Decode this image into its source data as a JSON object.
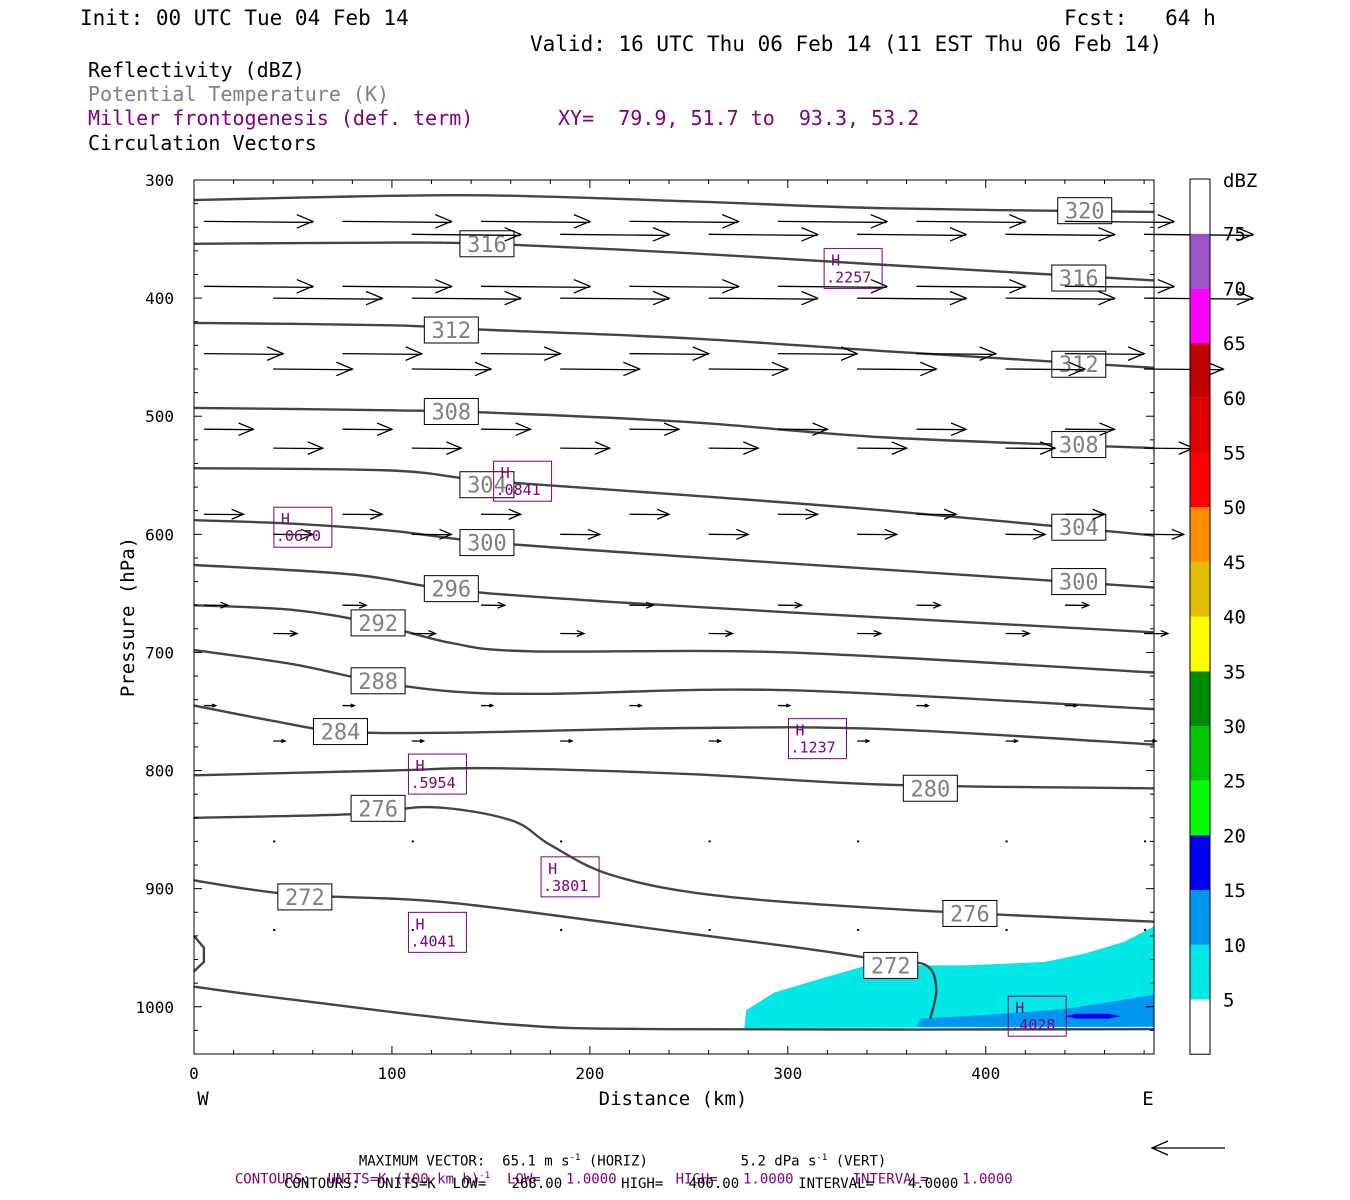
{
  "header": {
    "init": "Init: 00 UTC Tue 04 Feb 14",
    "fcst": "Fcst:   64 h",
    "valid": "Valid: 16 UTC Thu 06 Feb 14 (11 EST Thu 06 Feb 14)"
  },
  "fields": {
    "line1": "Reflectivity (dBZ)",
    "line2": "Potential Temperature (K)",
    "line3": "Miller frontogenesis (def. term)",
    "xy": "XY=  79.9, 51.7 to  93.3, 53.2",
    "line4": "Circulation Vectors"
  },
  "colors": {
    "potential_temperature": "#444444",
    "frontogenesis": "#800080",
    "potential_temperature_label": "#808080",
    "vectors": "#000000"
  },
  "chart_data": {
    "type": "cross-section",
    "xlabel": "Distance (km)",
    "ylabel": "Pressure (hPa)",
    "xlim": [
      0,
      485
    ],
    "ylim": [
      1040,
      300
    ],
    "x_ticks": [
      0,
      100,
      200,
      300,
      400
    ],
    "y_ticks": [
      300,
      400,
      500,
      600,
      700,
      800,
      900,
      1000
    ],
    "x_end_labels": {
      "left": "W",
      "right": "E"
    },
    "colorbar": {
      "unit": "dBZ",
      "levels": [
        5,
        10,
        15,
        20,
        25,
        30,
        35,
        40,
        45,
        50,
        55,
        60,
        65,
        70,
        75
      ],
      "colors": [
        "#00e8e8",
        "#0096f0",
        "#0000f0",
        "#00ff00",
        "#00c800",
        "#008c00",
        "#ffff00",
        "#e6be00",
        "#ff8c00",
        "#ff0000",
        "#e00000",
        "#c00000",
        "#ff00ff",
        "#9955c9",
        "#ffffff"
      ]
    },
    "reflectivity_areas": [
      {
        "level": 5,
        "polygon": [
          [
            278,
            1018
          ],
          [
            279,
            1003
          ],
          [
            293,
            988
          ],
          [
            315,
            977
          ],
          [
            340,
            965
          ],
          [
            390,
            965
          ],
          [
            430,
            962
          ],
          [
            450,
            955
          ],
          [
            470,
            945
          ],
          [
            485,
            932
          ],
          [
            485,
            1017
          ],
          [
            278,
            1018
          ]
        ]
      },
      {
        "level": 10,
        "polygon": [
          [
            365,
            1017
          ],
          [
            367,
            1010
          ],
          [
            400,
            1007
          ],
          [
            440,
            1002
          ],
          [
            485,
            990
          ],
          [
            485,
            1017
          ],
          [
            365,
            1017
          ]
        ]
      },
      {
        "level": 15,
        "polygon": [
          [
            440,
            1008
          ],
          [
            446,
            1006
          ],
          [
            462,
            1006
          ],
          [
            468,
            1008
          ],
          [
            462,
            1010
          ],
          [
            446,
            1010
          ]
        ]
      }
    ],
    "theta_contours": [
      {
        "value": 320,
        "points": [
          [
            0,
            317
          ],
          [
            80,
            314
          ],
          [
            150,
            313
          ],
          [
            250,
            318
          ],
          [
            350,
            324
          ],
          [
            485,
            327
          ]
        ],
        "label_at": [
          450,
          326
        ]
      },
      {
        "value": 316,
        "points": [
          [
            0,
            354
          ],
          [
            100,
            353
          ],
          [
            150,
            354
          ],
          [
            250,
            362
          ],
          [
            350,
            372
          ],
          [
            485,
            385
          ]
        ],
        "label_at": [
          148,
          354
        ],
        "label2_at": [
          447,
          383
        ]
      },
      {
        "value": 312,
        "points": [
          [
            0,
            421
          ],
          [
            100,
            423
          ],
          [
            150,
            427
          ],
          [
            250,
            434
          ],
          [
            350,
            445
          ],
          [
            485,
            459
          ]
        ],
        "label_at": [
          130,
          427
        ],
        "label2_at": [
          447,
          456
        ]
      },
      {
        "value": 308,
        "points": [
          [
            0,
            493
          ],
          [
            100,
            495
          ],
          [
            150,
            497
          ],
          [
            250,
            505
          ],
          [
            350,
            518
          ],
          [
            485,
            527
          ]
        ],
        "label_at": [
          130,
          496
        ],
        "label2_at": [
          447,
          524
        ]
      },
      {
        "value": 304,
        "points": [
          [
            0,
            544
          ],
          [
            100,
            546
          ],
          [
            150,
            555
          ],
          [
            250,
            567
          ],
          [
            350,
            580
          ],
          [
            485,
            601
          ]
        ],
        "label_at": [
          148,
          558
        ],
        "label2_at": [
          447,
          594
        ]
      },
      {
        "value": 300,
        "points": [
          [
            0,
            588
          ],
          [
            50,
            591
          ],
          [
            100,
            597
          ],
          [
            150,
            607
          ],
          [
            250,
            619
          ],
          [
            350,
            630
          ],
          [
            485,
            645
          ]
        ],
        "label_at": [
          148,
          607
        ],
        "label2_at": [
          447,
          640
        ]
      },
      {
        "value": 296,
        "points": [
          [
            0,
            626
          ],
          [
            80,
            634
          ],
          [
            130,
            647
          ],
          [
            200,
            656
          ],
          [
            300,
            666
          ],
          [
            485,
            683
          ]
        ],
        "label_at": [
          130,
          646
        ]
      },
      {
        "value": 292,
        "points": [
          [
            0,
            660
          ],
          [
            50,
            664
          ],
          [
            90,
            675
          ],
          [
            130,
            692
          ],
          [
            170,
            699
          ],
          [
            300,
            700
          ],
          [
            485,
            717
          ]
        ],
        "label_at": [
          93,
          675
        ]
      },
      {
        "value": 288,
        "points": [
          [
            0,
            698
          ],
          [
            50,
            710
          ],
          [
            90,
            724
          ],
          [
            130,
            733
          ],
          [
            180,
            735
          ],
          [
            300,
            732
          ],
          [
            485,
            748
          ]
        ],
        "label_at": [
          93,
          724
        ]
      },
      {
        "value": 284,
        "points": [
          [
            0,
            745
          ],
          [
            40,
            758
          ],
          [
            75,
            767
          ],
          [
            130,
            768
          ],
          [
            250,
            764
          ],
          [
            350,
            765
          ],
          [
            485,
            778
          ]
        ],
        "label_at": [
          74,
          767
        ]
      },
      {
        "value": 280,
        "points": [
          [
            0,
            804
          ],
          [
            100,
            800
          ],
          [
            150,
            798
          ],
          [
            250,
            803
          ],
          [
            350,
            812
          ],
          [
            485,
            815
          ]
        ],
        "label_at": [
          372,
          815
        ]
      },
      {
        "value": 276,
        "points": [
          [
            0,
            840
          ],
          [
            80,
            837
          ],
          [
            120,
            831
          ],
          [
            160,
            842
          ],
          [
            180,
            863
          ],
          [
            210,
            888
          ],
          [
            260,
            905
          ],
          [
            350,
            917
          ],
          [
            485,
            928
          ]
        ],
        "label_at": [
          93,
          832
        ],
        "label2_at": [
          392,
          921
        ]
      },
      {
        "value": 272,
        "points": [
          [
            0,
            893
          ],
          [
            50,
            905
          ],
          [
            130,
            912
          ],
          [
            250,
            938
          ],
          [
            310,
            951
          ],
          [
            350,
            961
          ],
          [
            370,
            965
          ],
          [
            375,
            985
          ],
          [
            372,
            1010
          ]
        ],
        "label_at": [
          56,
          907
        ],
        "label2_at": [
          352,
          965
        ]
      },
      {
        "value": 268,
        "points": [
          [
            0,
            983
          ],
          [
            50,
            994
          ],
          [
            160,
            1015
          ],
          [
            250,
            1019
          ],
          [
            485,
            1019
          ]
        ]
      }
    ],
    "frontogenesis_highs": [
      {
        "label": "H",
        "value": ".0670",
        "at": [
          55,
          594
        ]
      },
      {
        "label": "H",
        "value": ".0841",
        "at": [
          166,
          555
        ]
      },
      {
        "label": "H",
        "value": ".2257",
        "at": [
          333,
          375
        ]
      },
      {
        "label": "H",
        "value": ".1237",
        "at": [
          315,
          773
        ]
      },
      {
        "label": "H",
        "value": ".5954",
        "at": [
          123,
          803
        ]
      },
      {
        "label": "H",
        "value": ".3801",
        "at": [
          190,
          890
        ]
      },
      {
        "label": "H",
        "value": ".4041",
        "at": [
          123,
          937
        ]
      },
      {
        "label": "H",
        "value": ".4028",
        "at": [
          426,
          1008
        ]
      }
    ],
    "vector_rows": [
      {
        "p": 335,
        "dx": 55,
        "xs": [
          5,
          75,
          145,
          220,
          295,
          365,
          440
        ]
      },
      {
        "p": 346,
        "dx": 55,
        "xs": [
          110,
          185,
          260,
          335,
          410,
          480
        ]
      },
      {
        "p": 390,
        "dx": 55,
        "xs": [
          5,
          75,
          145,
          220,
          295,
          365,
          440
        ]
      },
      {
        "p": 400,
        "dx": 55,
        "xs": [
          40,
          110,
          185,
          260,
          335,
          410,
          480
        ]
      },
      {
        "p": 447,
        "dx": 40,
        "xs": [
          5,
          75,
          145,
          220,
          295,
          365,
          440
        ]
      },
      {
        "p": 460,
        "dx": 40,
        "xs": [
          40,
          110,
          185,
          260,
          335,
          410,
          480
        ]
      },
      {
        "p": 511,
        "dx": 25,
        "xs": [
          5,
          75,
          145,
          220,
          295,
          365,
          440
        ]
      },
      {
        "p": 527,
        "dx": 25,
        "xs": [
          40,
          110,
          185,
          260,
          335,
          410,
          480
        ]
      },
      {
        "p": 583,
        "dx": 20,
        "xs": [
          5,
          75,
          145,
          220,
          295,
          365,
          440
        ]
      },
      {
        "p": 600,
        "dx": 20,
        "xs": [
          40,
          110,
          185,
          260,
          335,
          410,
          480
        ]
      },
      {
        "p": 660,
        "dx": 12,
        "xs": [
          5,
          75,
          145,
          220,
          295,
          365,
          440
        ]
      },
      {
        "p": 684,
        "dx": 12,
        "xs": [
          40,
          110,
          185,
          260,
          335,
          410,
          480
        ]
      },
      {
        "p": 745,
        "dx": 6,
        "xs": [
          5,
          75,
          145,
          220,
          295,
          365,
          440
        ]
      },
      {
        "p": 775,
        "dx": 6,
        "xs": [
          40,
          110,
          185,
          260,
          335,
          410,
          480
        ]
      },
      {
        "p": 860,
        "dx": 2,
        "xs": [
          40,
          110,
          185,
          260,
          335,
          410,
          480
        ]
      },
      {
        "p": 935,
        "dx": 2,
        "xs": [
          40,
          110,
          185,
          260,
          335,
          410,
          480
        ]
      }
    ]
  },
  "footer": {
    "maxvec_label": "MAXIMUM VECTOR:",
    "maxvec_horiz": "65.1 m s",
    "maxvec_horiz_sup": "-1",
    "maxvec_horiz_tail": " (HORIZ)",
    "maxvec_vert": "5.2 dPa s",
    "maxvec_vert_sup": "-1",
    "maxvec_vert_tail": " (VERT)",
    "contours1_a": "CONTOURS:  UNITS=K (100 km h)",
    "contours1_sup": "-1",
    "contours1_b": "  LOW=   1.0000       HIGH=   1.0000       INTERVAL=    1.0000",
    "contours2": "CONTOURS:  UNITS=K  LOW=   268.00       HIGH=   400.00       INTERVAL=    4.0000"
  }
}
